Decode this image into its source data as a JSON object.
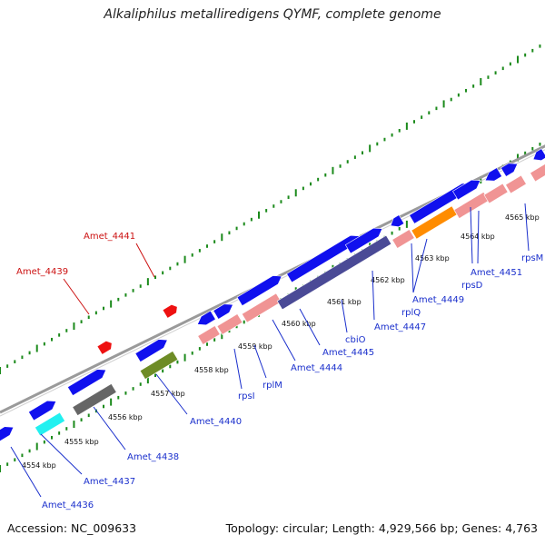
{
  "title": "Alkaliphilus metalliredigens QYMF, complete genome",
  "footer": {
    "accession": "Accession: NC_009633",
    "summary": "Topology: circular; Length: 4,929,566 bp; Genes: 4,763"
  },
  "colors": {
    "blue": "#1010ee",
    "salmon": "#f09494",
    "dark_purple": "#4a4a96",
    "olive": "#6e8c26",
    "dark_gray": "#666666",
    "cyan": "#22f0f0",
    "orange": "#ff8c00",
    "red": "#ee1111",
    "backbone": "#9a9a9a",
    "tick": "#1b8a1b",
    "label_blue": "#1a2fcc",
    "label_red": "#cc1111"
  },
  "kbp_ticks": [
    "4554 kbp",
    "4555 kbp",
    "4556 kbp",
    "4557 kbp",
    "4558 kbp",
    "4559 kbp",
    "4560 kbp",
    "4561 kbp",
    "4562 kbp",
    "4563 kbp",
    "4564 kbp",
    "4565 kbp"
  ],
  "gene_labels": [
    {
      "text": "Amet_4436",
      "color": "blue"
    },
    {
      "text": "Amet_4437",
      "color": "blue"
    },
    {
      "text": "Amet_4438",
      "color": "blue"
    },
    {
      "text": "Amet_4439",
      "color": "red"
    },
    {
      "text": "Amet_4440",
      "color": "blue"
    },
    {
      "text": "Amet_4441",
      "color": "red"
    },
    {
      "text": "rpsI",
      "color": "blue"
    },
    {
      "text": "rplM",
      "color": "blue"
    },
    {
      "text": "Amet_4444",
      "color": "blue"
    },
    {
      "text": "Amet_4445",
      "color": "blue"
    },
    {
      "text": "cbiO",
      "color": "blue"
    },
    {
      "text": "Amet_4447",
      "color": "blue"
    },
    {
      "text": "rplQ",
      "color": "blue"
    },
    {
      "text": "Amet_4449",
      "color": "blue"
    },
    {
      "text": "rpsD",
      "color": "blue"
    },
    {
      "text": "Amet_4451",
      "color": "blue"
    },
    {
      "text": "rpsM",
      "color": "blue"
    }
  ]
}
